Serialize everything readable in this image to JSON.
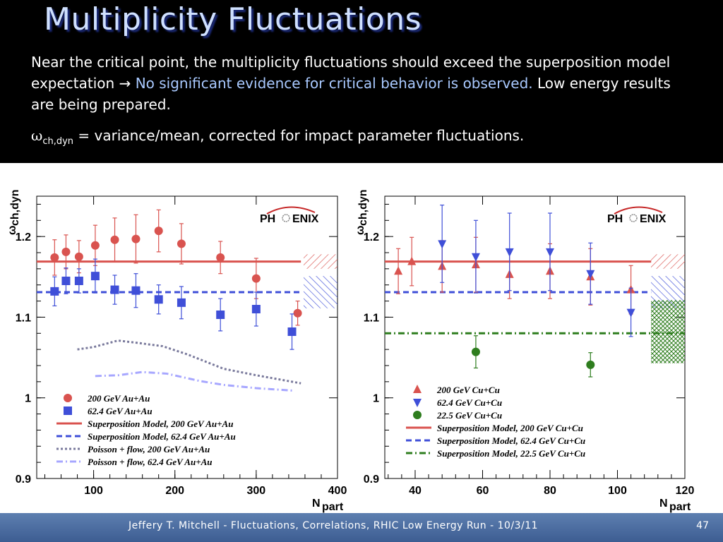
{
  "slide": {
    "title": "Multiplicity Fluctuations",
    "intro_1": "Near the critical point, the multiplicity fluctuations should exceed the superposition model expectation ",
    "arrow": "→",
    "intro_highlight": "No significant evidence for critical behavior is observed.",
    "intro_2": " Low energy results are being prepared.",
    "def_symbol": "ω",
    "def_sub": "ch,dyn",
    "def_text": " = variance/mean, corrected for impact parameter fluctuations.",
    "footer": "Jeffery T. Mitchell - Fluctuations, Correlations, RHIC Low Energy Run  - 10/3/11",
    "page": "47"
  },
  "colors": {
    "red": "#d9534f",
    "blue": "#3f4fd8",
    "green": "#2e7d1e",
    "poisson200": "#7a7a9c",
    "poisson62": "#a7a7ff"
  },
  "logo_text": {
    "left": "PH",
    "right": "ENIX"
  },
  "chart_data": [
    {
      "type": "scatter",
      "xlabel_main": "N",
      "xlabel_sub": "part",
      "ylabel_main": "ω",
      "ylabel_sub": "ch,dyn",
      "xlim": [
        30,
        400
      ],
      "ylim": [
        0.9,
        1.25
      ],
      "xticks": [
        100,
        200,
        300,
        400
      ],
      "yticks": [
        0.9,
        1,
        1.1,
        1.2
      ],
      "ytick_labels": [
        "0.9",
        "1",
        "1.1",
        "1.2"
      ],
      "series": [
        {
          "name": "200 GeV Au+Au",
          "marker": "circle",
          "color": "red",
          "points": [
            [
              52,
              1.174,
              0.022
            ],
            [
              66,
              1.181,
              0.021
            ],
            [
              82,
              1.175,
              0.02
            ],
            [
              102,
              1.189,
              0.025
            ],
            [
              126,
              1.196,
              0.027
            ],
            [
              152,
              1.197,
              0.03
            ],
            [
              180,
              1.207,
              0.026
            ],
            [
              208,
              1.191,
              0.025
            ],
            [
              256,
              1.174,
              0.02
            ],
            [
              300,
              1.148,
              0.025
            ],
            [
              351,
              1.105,
              0.015
            ]
          ]
        },
        {
          "name": "62.4 GeV Au+Au",
          "marker": "square",
          "color": "blue",
          "points": [
            [
              52,
              1.132,
              0.018
            ],
            [
              66,
              1.145,
              0.016
            ],
            [
              82,
              1.145,
              0.015
            ],
            [
              102,
              1.151,
              0.021
            ],
            [
              126,
              1.134,
              0.018
            ],
            [
              152,
              1.133,
              0.021
            ],
            [
              180,
              1.122,
              0.018
            ],
            [
              208,
              1.118,
              0.02
            ],
            [
              256,
              1.103,
              0.02
            ],
            [
              300,
              1.11,
              0.021
            ],
            [
              344,
              1.082,
              0.022
            ]
          ]
        }
      ],
      "lines": [
        {
          "name": "Superposition Model, 200 GeV Au+Au",
          "style": "solid",
          "color": "red",
          "y": 1.169,
          "x": [
            30,
            355
          ]
        },
        {
          "name": "Superposition Model, 62.4 GeV Au+Au",
          "style": "dash",
          "color": "blue",
          "y": 1.131,
          "x": [
            30,
            355
          ]
        }
      ],
      "curves": [
        {
          "name": "Poisson + flow, 200 GeV Au+Au",
          "style": "dot",
          "color": "poisson200",
          "points": [
            [
              80,
              1.06
            ],
            [
              100,
              1.063
            ],
            [
              130,
              1.071
            ],
            [
              155,
              1.068
            ],
            [
              185,
              1.064
            ],
            [
              215,
              1.054
            ],
            [
              260,
              1.036
            ],
            [
              300,
              1.028
            ],
            [
              355,
              1.018
            ]
          ]
        },
        {
          "name": "Poisson + flow, 62.4 GeV Au+Au",
          "style": "dashdot",
          "color": "poisson62",
          "points": [
            [
              102,
              1.027
            ],
            [
              130,
              1.028
            ],
            [
              160,
              1.032
            ],
            [
              190,
              1.03
            ],
            [
              230,
              1.021
            ],
            [
              260,
              1.016
            ],
            [
              300,
              1.012
            ],
            [
              345,
              1.009
            ]
          ]
        }
      ],
      "bands": [
        {
          "color": "red",
          "ylo": 1.16,
          "yhi": 1.178
        },
        {
          "color": "blue",
          "ylo": 1.111,
          "yhi": 1.151
        }
      ],
      "legend": [
        {
          "label": "200 GeV Au+Au",
          "kind": "circle",
          "color": "red"
        },
        {
          "label": "62.4 GeV Au+Au",
          "kind": "square",
          "color": "blue"
        },
        {
          "label": "Superposition Model, 200 GeV Au+Au",
          "kind": "solid",
          "color": "red"
        },
        {
          "label": "Superposition Model, 62.4 GeV Au+Au",
          "kind": "dash",
          "color": "blue"
        },
        {
          "label": "Poisson + flow, 200 GeV Au+Au",
          "kind": "dot",
          "color": "poisson200"
        },
        {
          "label": "Poisson + flow, 62.4 GeV Au+Au",
          "kind": "dashdot",
          "color": "poisson62"
        }
      ]
    },
    {
      "type": "scatter",
      "xlabel_main": "N",
      "xlabel_sub": "part",
      "ylabel_main": "ω",
      "ylabel_sub": "ch,dyn",
      "xlim": [
        31,
        120
      ],
      "ylim": [
        0.9,
        1.25
      ],
      "xticks": [
        40,
        60,
        80,
        100,
        120
      ],
      "yticks": [
        0.9,
        1,
        1.1,
        1.2
      ],
      "ytick_labels": [
        "0.9",
        "1",
        "1.1",
        "1.2"
      ],
      "series": [
        {
          "name": "200 GeV Cu+Cu",
          "marker": "triangle-up",
          "color": "red",
          "points": [
            [
              35,
              1.157,
              0.028
            ],
            [
              39,
              1.169,
              0.03
            ],
            [
              48,
              1.163,
              0.032
            ],
            [
              58,
              1.165,
              0.034
            ],
            [
              68,
              1.153,
              0.03
            ],
            [
              80,
              1.157,
              0.034
            ],
            [
              92,
              1.15,
              0.035
            ],
            [
              104,
              1.134,
              0.03
            ]
          ]
        },
        {
          "name": "62.4 GeV Cu+Cu",
          "marker": "triangle-down",
          "color": "blue",
          "points": [
            [
              48,
              1.191,
              0.048
            ],
            [
              58,
              1.175,
              0.045
            ],
            [
              68,
              1.181,
              0.048
            ],
            [
              80,
              1.181,
              0.048
            ],
            [
              92,
              1.154,
              0.038
            ],
            [
              104,
              1.106,
              0.03
            ]
          ]
        },
        {
          "name": "22.5 GeV Cu+Cu",
          "marker": "circle",
          "color": "green",
          "points": [
            [
              58,
              1.057,
              0.02
            ],
            [
              92,
              1.041,
              0.015
            ]
          ]
        }
      ],
      "lines": [
        {
          "name": "Superposition Model, 200 GeV Cu+Cu",
          "style": "solid",
          "color": "red",
          "y": 1.169,
          "x": [
            31,
            110
          ]
        },
        {
          "name": "Superposition Model, 62.4 GeV Cu+Cu",
          "style": "dash",
          "color": "blue",
          "y": 1.131,
          "x": [
            31,
            110
          ]
        },
        {
          "name": "Superposition Model, 22.5 GeV Cu+Cu",
          "style": "dashdot",
          "color": "green",
          "y": 1.08,
          "x": [
            31,
            120
          ]
        }
      ],
      "curves": [],
      "bands": [
        {
          "color": "red",
          "ylo": 1.16,
          "yhi": 1.178
        },
        {
          "color": "blue",
          "ylo": 1.111,
          "yhi": 1.151
        },
        {
          "color": "green",
          "ylo": 1.043,
          "yhi": 1.121
        }
      ],
      "legend": [
        {
          "label": "200 GeV Cu+Cu",
          "kind": "triangle-up",
          "color": "red"
        },
        {
          "label": "62.4 GeV Cu+Cu",
          "kind": "triangle-down",
          "color": "blue"
        },
        {
          "label": "22.5 GeV Cu+Cu",
          "kind": "circle",
          "color": "green"
        },
        {
          "label": "Superposition Model, 200 GeV Cu+Cu",
          "kind": "solid",
          "color": "red"
        },
        {
          "label": "Superposition Model, 62.4 GeV Cu+Cu",
          "kind": "dash",
          "color": "blue"
        },
        {
          "label": "Superposition Model, 22.5 GeV Cu+Cu",
          "kind": "dashdot",
          "color": "green"
        }
      ]
    }
  ]
}
